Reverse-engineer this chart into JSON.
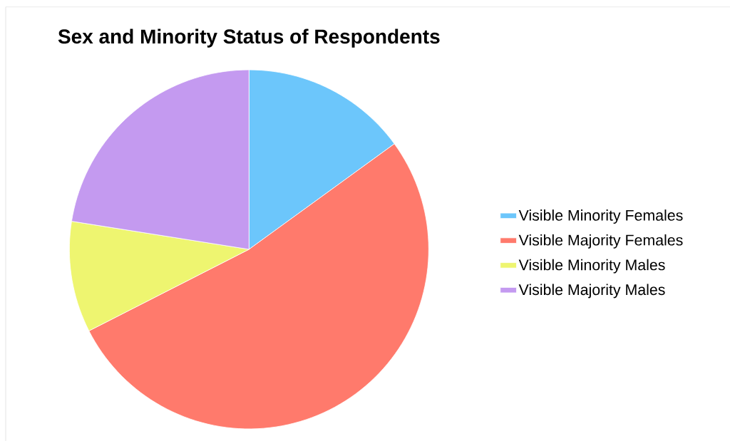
{
  "chart_data": {
    "type": "pie",
    "title": "Sex and Minority Status of Respondents",
    "categories": [
      "Visible Minority Females",
      "Visible Majority Females",
      "Visible Minority Males",
      "Visible Majority Males"
    ],
    "values": [
      15,
      52.5,
      10,
      22.5
    ],
    "colors": [
      "#6cc6fb",
      "#ff7a6c",
      "#eef570",
      "#c49af0"
    ],
    "legend": "right"
  }
}
